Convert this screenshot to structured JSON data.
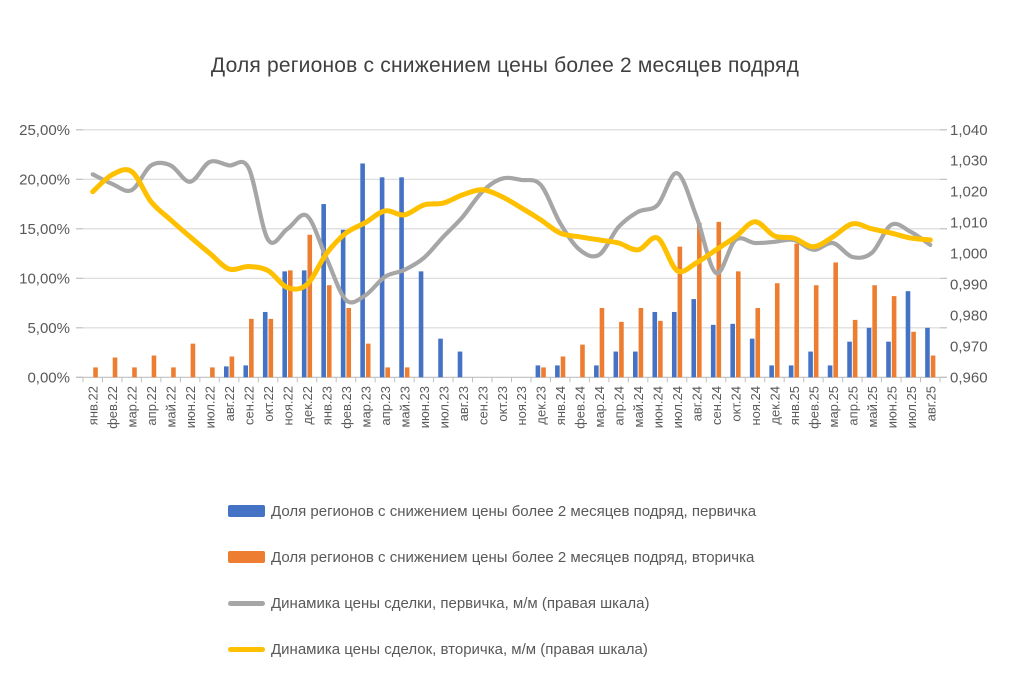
{
  "title": "Доля регионов с снижением цены более 2 месяцев подряд",
  "colors": {
    "primary_bar": "#4472C4",
    "secondary_bar": "#ED7D31",
    "primary_line": "#A6A6A6",
    "secondary_line": "#FFC000",
    "grid": "#D9D9D9",
    "axis_line": "#BFBFBF",
    "axis_text": "#595959",
    "title_text": "#404040"
  },
  "axes": {
    "left_labels": [
      "25,00%",
      "20,00%",
      "15,00%",
      "10,00%",
      "5,00%",
      "0,00%"
    ],
    "right_labels": [
      "1,040",
      "1,030",
      "1,020",
      "1,010",
      "1,000",
      "0,990",
      "0,980",
      "0,970",
      "0,960"
    ]
  },
  "chart_data": {
    "type": "bar",
    "subtype": "combo-bar-line-dual-axis",
    "title": "Доля регионов с снижением цены более 2 месяцев подряд",
    "grid": true,
    "legend_position": "bottom-left",
    "left_ylim": [
      0,
      25
    ],
    "left_unit": "%",
    "right_ylim": [
      0.96,
      1.04
    ],
    "categories": [
      "янв.22",
      "фев.22",
      "мар.22",
      "апр.22",
      "май.22",
      "июн.22",
      "июл.22",
      "авг.22",
      "сен.22",
      "окт.22",
      "ноя.22",
      "дек.22",
      "янв.23",
      "фев.23",
      "мар.23",
      "апр.23",
      "май.23",
      "июн.23",
      "июл.23",
      "авг.23",
      "сен.23",
      "окт.23",
      "ноя.23",
      "дек.23",
      "янв.24",
      "фев.24",
      "мар.24",
      "апр.24",
      "май.24",
      "июн.24",
      "июл.24",
      "авг.24",
      "сен.24",
      "окт.24",
      "ноя.24",
      "дек.24",
      "янв.25",
      "фев.25",
      "мар.25",
      "апр.25",
      "май.25",
      "июн.25",
      "июл.25",
      "авг.25"
    ],
    "series": [
      {
        "name": "Доля регионов с снижением цены более 2 месяцев подряд, первичка",
        "type": "bar",
        "axis": "left",
        "color_key": "primary_bar",
        "values": [
          0,
          0,
          0,
          0,
          0,
          0,
          0,
          1.1,
          1.2,
          6.6,
          10.7,
          10.8,
          17.5,
          14.9,
          21.6,
          20.2,
          20.2,
          10.7,
          3.9,
          2.6,
          0,
          0,
          0,
          1.2,
          1.2,
          0,
          1.2,
          2.6,
          2.6,
          6.6,
          6.6,
          7.9,
          5.3,
          5.4,
          3.9,
          1.2,
          1.2,
          2.6,
          1.2,
          3.6,
          5.0,
          3.6,
          8.7,
          5.0
        ]
      },
      {
        "name": "Доля регионов с снижением цены более 2 месяцев подряд, вторичка",
        "type": "bar",
        "axis": "left",
        "color_key": "secondary_bar",
        "values": [
          1.0,
          2.0,
          1.0,
          2.2,
          1.0,
          3.4,
          1.0,
          2.1,
          5.9,
          5.9,
          10.8,
          14.4,
          9.3,
          7.0,
          3.4,
          1.0,
          1.0,
          0,
          0,
          0,
          0,
          0,
          0,
          1.0,
          2.1,
          3.3,
          7.0,
          5.6,
          7.0,
          5.7,
          13.2,
          15.6,
          15.7,
          10.7,
          7.0,
          9.5,
          13.5,
          9.3,
          11.6,
          5.8,
          9.3,
          8.2,
          4.6,
          2.2
        ]
      },
      {
        "name": "Динамика цены сделки, первичка, м/м (правая шкала)",
        "type": "line",
        "axis": "right",
        "color_key": "primary_line",
        "values": [
          1.0256,
          1.0225,
          1.0205,
          1.0285,
          1.0285,
          1.0232,
          1.0296,
          1.0285,
          1.0277,
          1.0045,
          1.008,
          1.0122,
          0.9985,
          0.985,
          0.9865,
          0.9925,
          0.9947,
          0.9986,
          1.0054,
          1.0119,
          1.02,
          1.0242,
          1.0238,
          1.0222,
          1.0098,
          1.0012,
          0.9996,
          1.0086,
          1.0135,
          1.0157,
          1.026,
          1.0119,
          0.9937,
          1.0044,
          1.0034,
          1.0038,
          1.0044,
          1.0012,
          1.0034,
          0.9989,
          1.0002,
          1.0093,
          1.007,
          1.0028
        ]
      },
      {
        "name": "Динамика цены сделок, вторичка, м/м (правая шкала)",
        "type": "line",
        "axis": "right",
        "color_key": "secondary_line",
        "values": [
          1.02,
          1.0255,
          1.0265,
          1.0167,
          1.0109,
          1.0054,
          1.0001,
          0.995,
          0.9958,
          0.9945,
          0.989,
          0.99,
          1.0,
          1.0066,
          1.01,
          1.0138,
          1.0125,
          1.0157,
          1.0163,
          1.019,
          1.0206,
          1.0184,
          1.0148,
          1.0109,
          1.0066,
          1.0054,
          1.0044,
          1.0034,
          1.0012,
          1.005,
          0.9945,
          0.997,
          1.0012,
          1.0054,
          1.0103,
          1.0057,
          1.005,
          1.0022,
          1.0054,
          1.0096,
          1.008,
          1.0066,
          1.005,
          1.0044
        ]
      }
    ]
  }
}
